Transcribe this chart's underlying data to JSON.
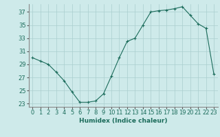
{
  "x": [
    0,
    1,
    2,
    3,
    4,
    5,
    6,
    7,
    8,
    9,
    10,
    11,
    12,
    13,
    14,
    15,
    16,
    17,
    18,
    19,
    20,
    21,
    22,
    23
  ],
  "y": [
    30,
    29.5,
    29,
    27.8,
    26.5,
    24.8,
    23.2,
    23.2,
    23.4,
    24.5,
    27.2,
    30,
    32.5,
    33,
    35,
    37,
    37.2,
    37.3,
    37.5,
    37.8,
    36.5,
    35.2,
    34.5,
    27.5
  ],
  "xlabel": "Humidex (Indice chaleur)",
  "ylim": [
    22.5,
    38.2
  ],
  "xlim": [
    -0.5,
    23.5
  ],
  "yticks": [
    23,
    25,
    27,
    29,
    31,
    33,
    35,
    37
  ],
  "xticks": [
    0,
    1,
    2,
    3,
    4,
    5,
    6,
    7,
    8,
    9,
    10,
    11,
    12,
    13,
    14,
    15,
    16,
    17,
    18,
    19,
    20,
    21,
    22,
    23
  ],
  "line_color": "#1a6b5a",
  "marker": "+",
  "bg_color": "#ceeaea",
  "grid_color": "#aacece",
  "label_fontsize": 6.5,
  "tick_fontsize": 6.0
}
